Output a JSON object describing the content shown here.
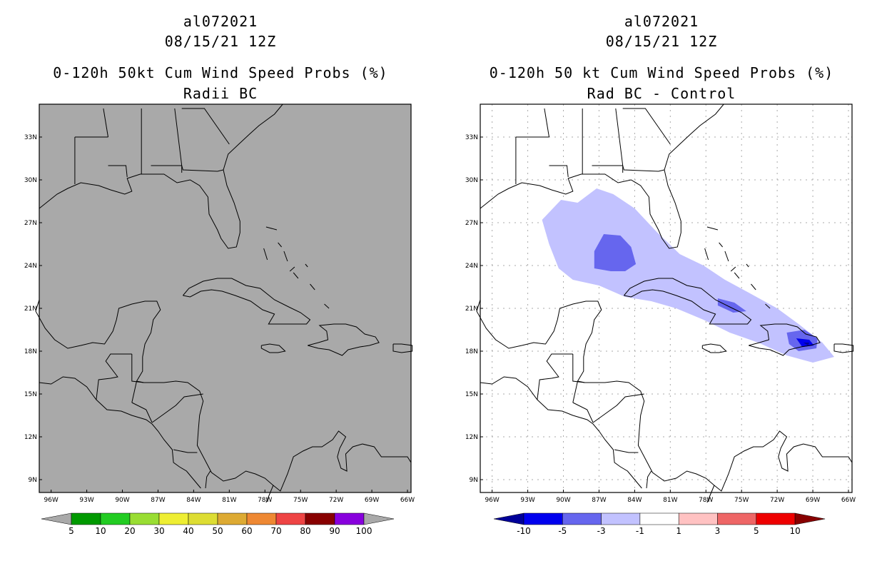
{
  "panels": [
    {
      "storm_id": "al072021",
      "cycle": "08/15/21 12Z",
      "title_line1": "0-120h 50kt Cum Wind Speed Probs (%)",
      "title_line2": "Radii BC",
      "background": "#a9a9a9",
      "colorbar_labels": [
        "5",
        "10",
        "20",
        "30",
        "40",
        "50",
        "60",
        "70",
        "80",
        "90",
        "100"
      ],
      "colorbar_colors": [
        "#009900",
        "#22cc22",
        "#99dd33",
        "#eeee33",
        "#dddd33",
        "#ddaa33",
        "#ee8833",
        "#ee4444",
        "#880000",
        "#8800dd"
      ]
    },
    {
      "storm_id": "al072021",
      "cycle": "08/15/21 12Z",
      "title_line1": "0-120h 50 kt Cum Wind Speed Probs (%)",
      "title_line2": "Rad BC - Control",
      "background": "#ffffff",
      "colorbar_labels": [
        "-10",
        "-5",
        "-3",
        "-1",
        "1",
        "3",
        "5",
        "10"
      ],
      "colorbar_colors": [
        "#000099",
        "#0000ee",
        "#6666ee",
        "#c2c2ff",
        "#ffffff",
        "#ffc2c2",
        "#ee6666",
        "#ee0000",
        "#880000"
      ]
    }
  ],
  "map": {
    "lat_labels": [
      "33N",
      "30N",
      "27N",
      "24N",
      "21N",
      "18N",
      "15N",
      "12N",
      "9N"
    ],
    "lon_labels": [
      "96W",
      "93W",
      "90W",
      "87W",
      "84W",
      "81W",
      "78W",
      "75W",
      "72W",
      "69W",
      "66W"
    ]
  }
}
